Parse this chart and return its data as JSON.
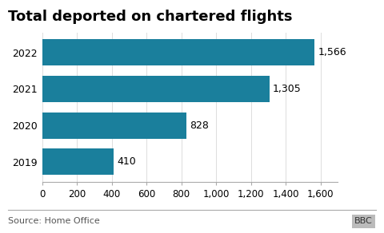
{
  "title": "Total deported on chartered flights",
  "categories": [
    "2022",
    "2021",
    "2020",
    "2019"
  ],
  "values": [
    1566,
    1305,
    828,
    410
  ],
  "bar_color": "#1a7f9c",
  "xlim": [
    0,
    1700
  ],
  "xticks": [
    0,
    200,
    400,
    600,
    800,
    1000,
    1200,
    1400,
    1600
  ],
  "xtick_labels": [
    "0",
    "200",
    "400",
    "600",
    "800",
    "1,000",
    "1,200",
    "1,400",
    "1,600"
  ],
  "bar_labels": [
    "1,566",
    "1,305",
    "828",
    "410"
  ],
  "source_text": "Source: Home Office",
  "bbc_text": "BBC",
  "title_fontsize": 13,
  "label_fontsize": 9,
  "tick_fontsize": 8.5,
  "source_fontsize": 8,
  "background_color": "#ffffff",
  "bar_height": 0.72
}
